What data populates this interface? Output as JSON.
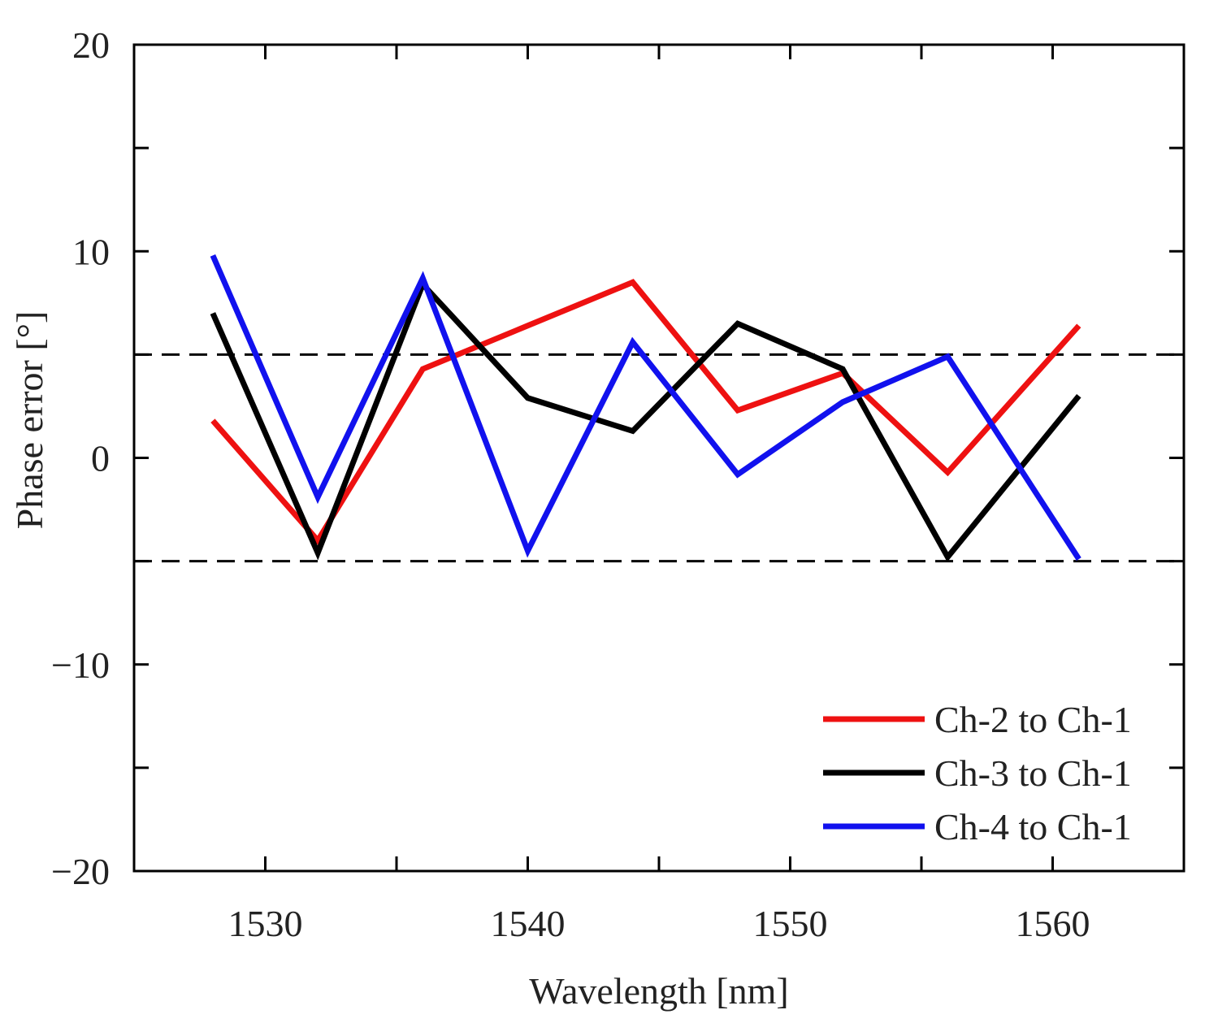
{
  "chart_data": {
    "type": "line",
    "title": "",
    "xlabel": "Wavelength [nm]",
    "ylabel": "Phase error [°]",
    "xlim": [
      1525,
      1565
    ],
    "ylim": [
      -20,
      20
    ],
    "xticks": [
      1530,
      1540,
      1550,
      1560
    ],
    "xtick_labels": [
      "1530",
      "1540",
      "1550",
      "1560"
    ],
    "yticks": [
      -20,
      -10,
      0,
      10,
      20
    ],
    "ytick_labels": [
      "−20",
      "−10",
      "0",
      "10",
      "20"
    ],
    "x": [
      1528,
      1532,
      1536,
      1540,
      1544,
      1548,
      1552,
      1556,
      1561
    ],
    "series": [
      {
        "name": "Ch-2 to Ch-1",
        "color": "#ee1111",
        "values": [
          1.8,
          -4.0,
          4.3,
          6.4,
          8.5,
          2.3,
          4.1,
          -0.7,
          6.4
        ]
      },
      {
        "name": "Ch-3 to Ch-1",
        "color": "#000000",
        "values": [
          7.0,
          -4.6,
          8.4,
          2.9,
          1.3,
          6.5,
          4.3,
          -4.8,
          3.0
        ]
      },
      {
        "name": "Ch-4 to Ch-1",
        "color": "#1111ee",
        "values": [
          9.8,
          -1.9,
          8.7,
          -4.5,
          5.6,
          -0.8,
          2.7,
          4.9,
          -4.9
        ]
      }
    ],
    "reference_lines": [
      5,
      -5
    ],
    "reference_line_style": "dashed",
    "grid": false,
    "legend_position": "bottom-right"
  }
}
